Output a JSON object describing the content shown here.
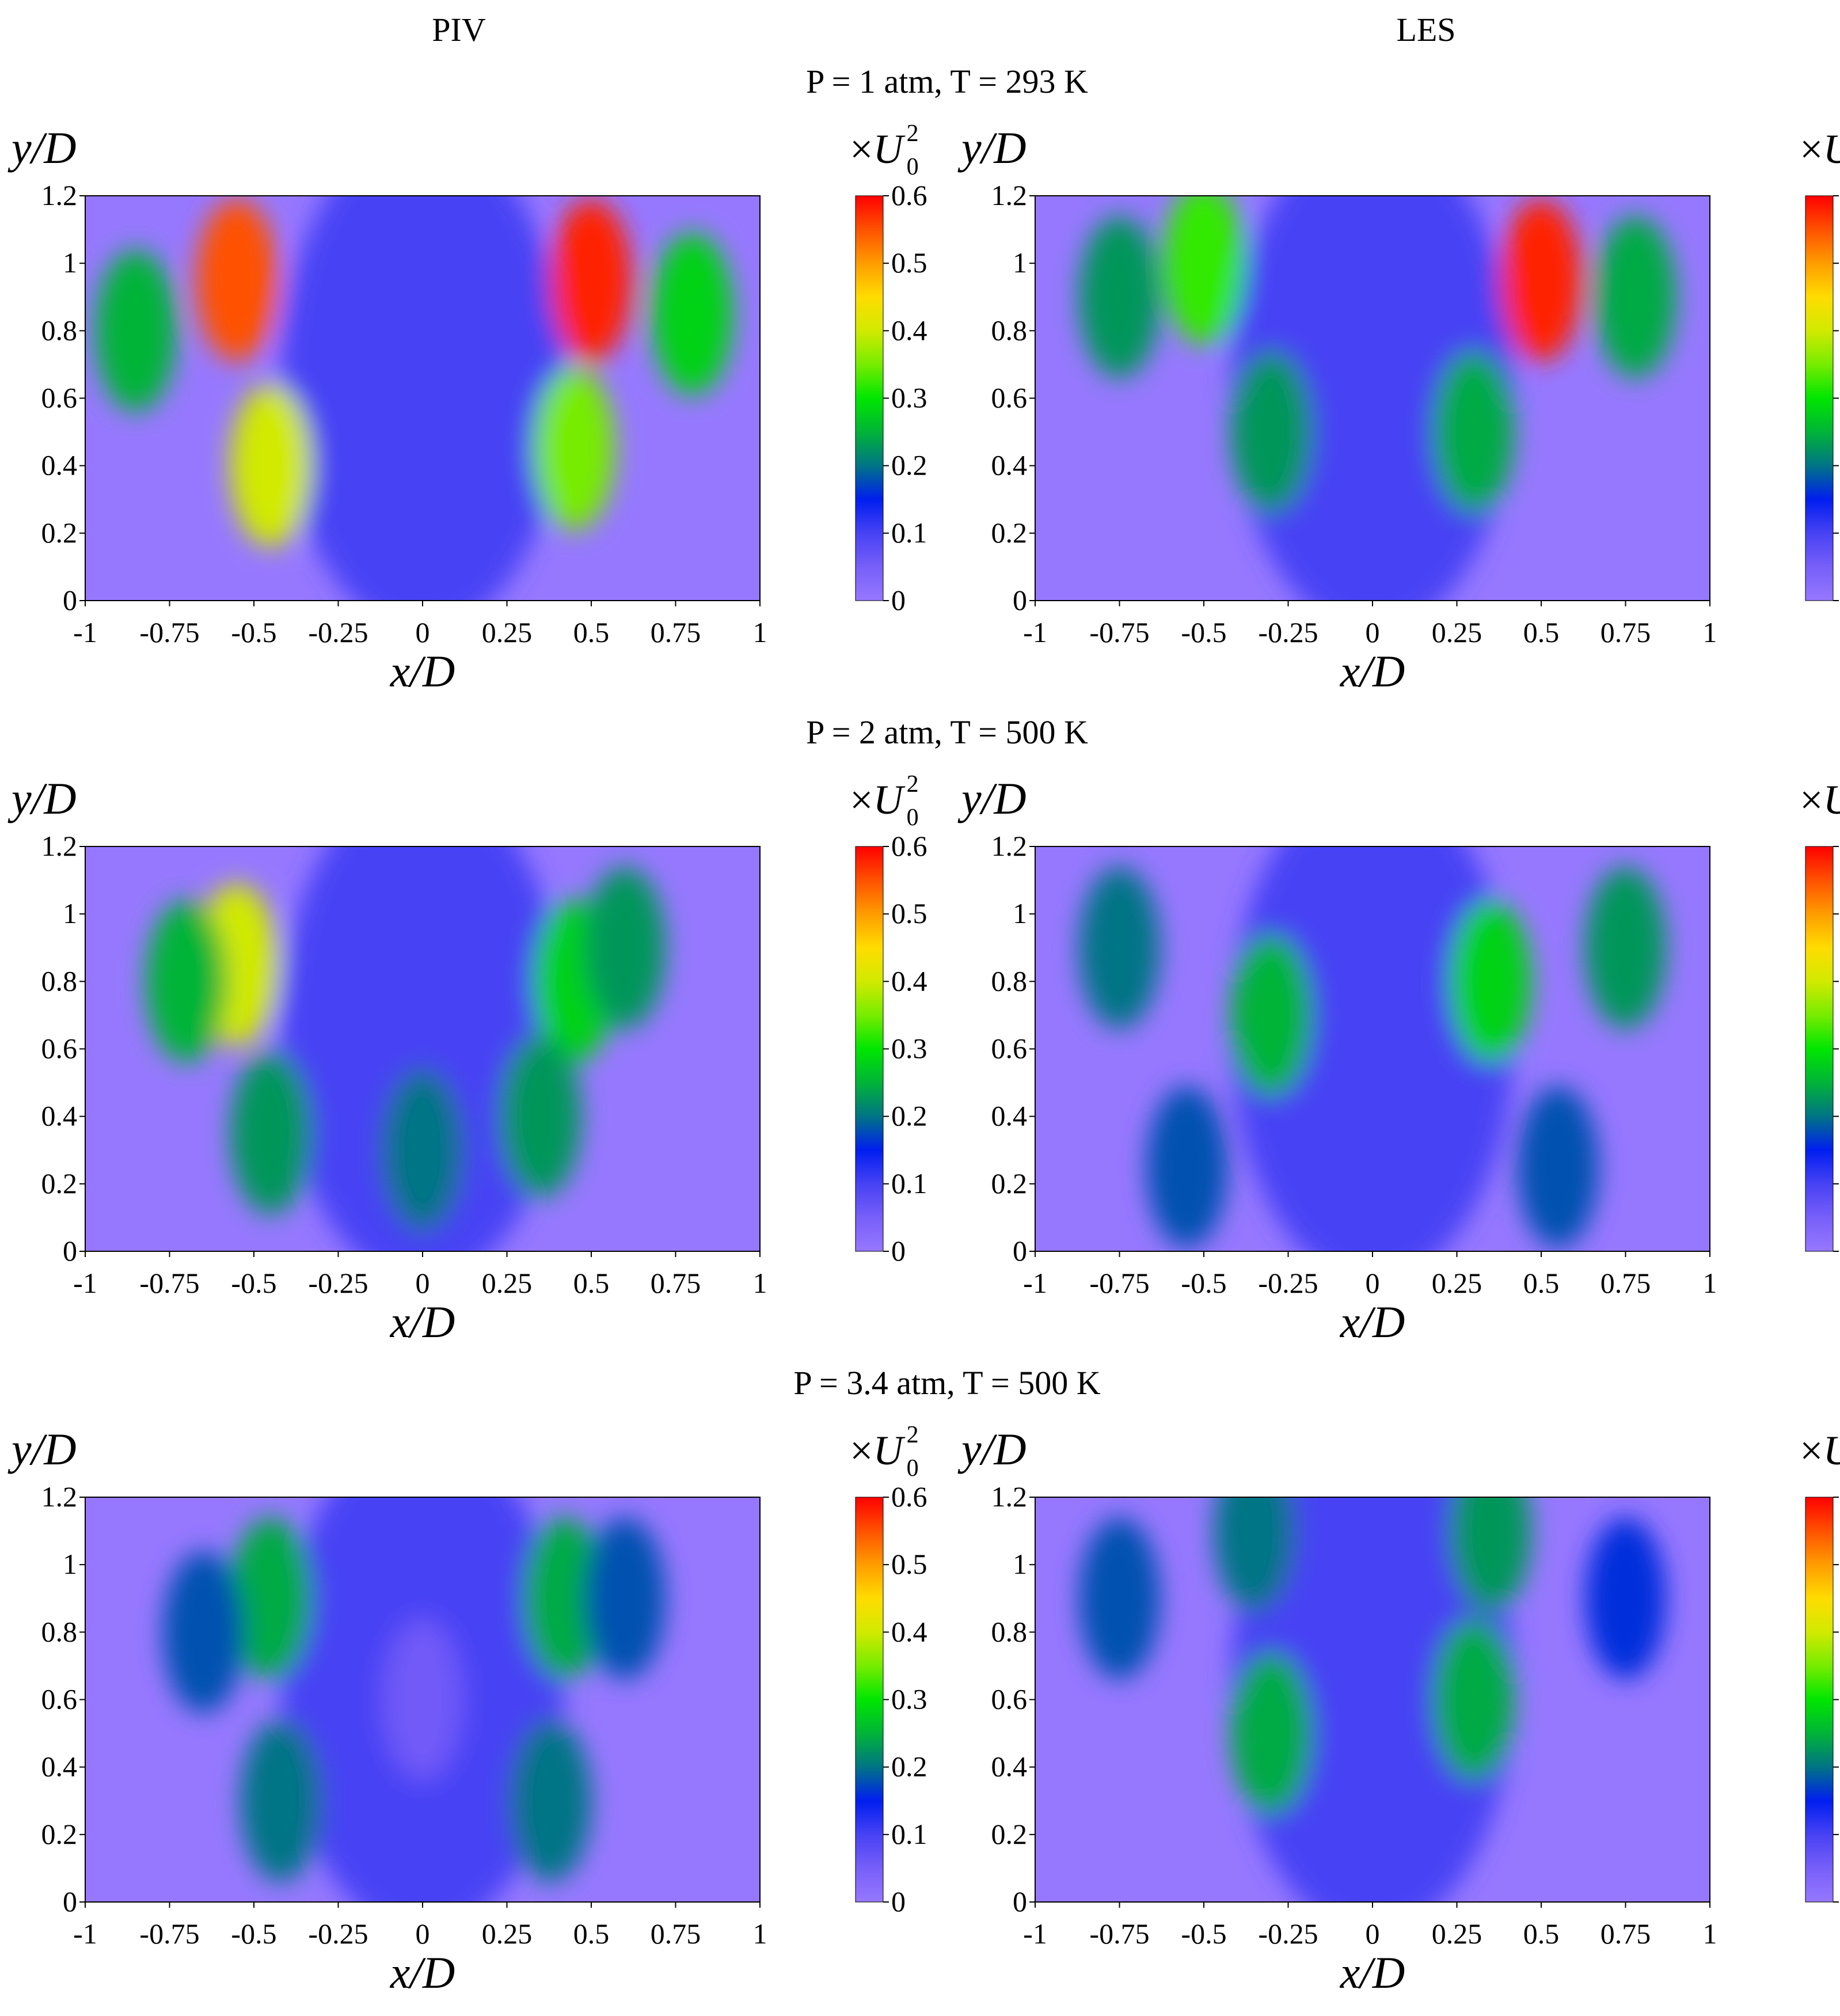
{
  "column_headers": [
    "PIV",
    "LES"
  ],
  "colorbar": {
    "ticks": [
      "0",
      "0.1",
      "0.2",
      "0.3",
      "0.4",
      "0.5",
      "0.6"
    ],
    "unit_prefix": "×",
    "unit_symbol": "U",
    "unit_sup": "2",
    "unit_sub": "0"
  },
  "chart_data": [
    {
      "type": "heatmap",
      "method": "PIV",
      "condition": "P = 1 atm, T = 293 K",
      "xlabel": "x/D",
      "ylabel": "y/D",
      "xlim": [
        -1,
        1
      ],
      "ylim": [
        0,
        1.2
      ],
      "clim": [
        0,
        0.6
      ],
      "xticks": [
        "-1",
        "-0.75",
        "-0.5",
        "-0.25",
        "0",
        "0.25",
        "0.5",
        "0.75",
        "1"
      ],
      "yticks": [
        "0",
        "0.2",
        "0.4",
        "0.6",
        "0.8",
        "1",
        "1.2"
      ],
      "features": [
        {
          "x": -0.55,
          "y": 0.95,
          "value": 0.55
        },
        {
          "x": 0.5,
          "y": 0.95,
          "value": 0.58
        },
        {
          "x": -0.45,
          "y": 0.4,
          "value": 0.4
        },
        {
          "x": 0.45,
          "y": 0.45,
          "value": 0.35
        },
        {
          "x": -0.85,
          "y": 0.8,
          "value": 0.25
        },
        {
          "x": 0.8,
          "y": 0.85,
          "value": 0.28
        },
        {
          "x": 0.0,
          "y": 0.6,
          "value": 0.1
        }
      ]
    },
    {
      "type": "heatmap",
      "method": "LES",
      "condition": "P = 1 atm, T = 293 K",
      "xlabel": "x/D",
      "ylabel": "y/D",
      "xlim": [
        -1,
        1
      ],
      "ylim": [
        0,
        1.2
      ],
      "clim": [
        0,
        0.6
      ],
      "xticks": [
        "-1",
        "-0.75",
        "-0.5",
        "-0.25",
        "0",
        "0.25",
        "0.5",
        "0.75",
        "1"
      ],
      "yticks": [
        "0",
        "0.2",
        "0.4",
        "0.6",
        "0.8",
        "1",
        "1.2"
      ],
      "features": [
        {
          "x": 0.5,
          "y": 0.95,
          "value": 0.58
        },
        {
          "x": -0.5,
          "y": 1.0,
          "value": 0.32
        },
        {
          "x": -0.3,
          "y": 0.5,
          "value": 0.22
        },
        {
          "x": 0.3,
          "y": 0.5,
          "value": 0.24
        },
        {
          "x": -0.75,
          "y": 0.9,
          "value": 0.22
        },
        {
          "x": 0.78,
          "y": 0.9,
          "value": 0.24
        },
        {
          "x": 0.0,
          "y": 0.6,
          "value": 0.1
        }
      ]
    },
    {
      "type": "heatmap",
      "method": "PIV",
      "condition": "P = 2 atm, T = 500 K",
      "xlabel": "x/D",
      "ylabel": "y/D",
      "xlim": [
        -1,
        1
      ],
      "ylim": [
        0,
        1.2
      ],
      "clim": [
        0,
        0.6
      ],
      "xticks": [
        "-1",
        "-0.75",
        "-0.5",
        "-0.25",
        "0",
        "0.25",
        "0.5",
        "0.75",
        "1"
      ],
      "yticks": [
        "0",
        "0.2",
        "0.4",
        "0.6",
        "0.8",
        "1",
        "1.2"
      ],
      "features": [
        {
          "x": -0.55,
          "y": 0.85,
          "value": 0.4
        },
        {
          "x": -0.7,
          "y": 0.8,
          "value": 0.25
        },
        {
          "x": 0.45,
          "y": 0.8,
          "value": 0.28
        },
        {
          "x": 0.6,
          "y": 0.9,
          "value": 0.22
        },
        {
          "x": -0.45,
          "y": 0.35,
          "value": 0.22
        },
        {
          "x": 0.0,
          "y": 0.3,
          "value": 0.2
        },
        {
          "x": 0.35,
          "y": 0.4,
          "value": 0.22
        }
      ]
    },
    {
      "type": "heatmap",
      "method": "LES",
      "condition": "P = 2 atm, T = 500 K",
      "xlabel": "x/D",
      "ylabel": "y/D",
      "xlim": [
        -1,
        1
      ],
      "ylim": [
        0,
        1.2
      ],
      "clim": [
        0,
        0.6
      ],
      "xticks": [
        "-1",
        "-0.75",
        "-0.5",
        "-0.25",
        "0",
        "0.25",
        "0.5",
        "0.75",
        "1"
      ],
      "yticks": [
        "0",
        "0.2",
        "0.4",
        "0.6",
        "0.8",
        "1",
        "1.2"
      ],
      "features": [
        {
          "x": -0.3,
          "y": 0.7,
          "value": 0.25
        },
        {
          "x": 0.35,
          "y": 0.8,
          "value": 0.28
        },
        {
          "x": -0.75,
          "y": 0.9,
          "value": 0.2
        },
        {
          "x": 0.75,
          "y": 0.9,
          "value": 0.22
        },
        {
          "x": -0.55,
          "y": 0.25,
          "value": 0.18
        },
        {
          "x": 0.55,
          "y": 0.25,
          "value": 0.18
        },
        {
          "x": 0.0,
          "y": 0.6,
          "value": 0.1
        }
      ]
    },
    {
      "type": "heatmap",
      "method": "PIV",
      "condition": "P = 3.4 atm, T = 500 K",
      "xlabel": "x/D",
      "ylabel": "y/D",
      "xlim": [
        -1,
        1
      ],
      "ylim": [
        0,
        1.2
      ],
      "clim": [
        0,
        0.6
      ],
      "xticks": [
        "-1",
        "-0.75",
        "-0.5",
        "-0.25",
        "0",
        "0.25",
        "0.5",
        "0.75",
        "1"
      ],
      "yticks": [
        "0",
        "0.2",
        "0.4",
        "0.6",
        "0.8",
        "1",
        "1.2"
      ],
      "features": [
        {
          "x": -0.45,
          "y": 0.9,
          "value": 0.24
        },
        {
          "x": -0.42,
          "y": 0.3,
          "value": 0.2
        },
        {
          "x": 0.42,
          "y": 0.9,
          "value": 0.24
        },
        {
          "x": 0.38,
          "y": 0.3,
          "value": 0.2
        },
        {
          "x": -0.65,
          "y": 0.8,
          "value": 0.18
        },
        {
          "x": 0.6,
          "y": 0.9,
          "value": 0.18
        },
        {
          "x": 0.0,
          "y": 0.6,
          "value": 0.06
        }
      ]
    },
    {
      "type": "heatmap",
      "method": "LES",
      "condition": "P = 3.4 atm, T = 500 K",
      "xlabel": "x/D",
      "ylabel": "y/D",
      "xlim": [
        -1,
        1
      ],
      "ylim": [
        0,
        1.2
      ],
      "clim": [
        0,
        0.6
      ],
      "xticks": [
        "-1",
        "-0.75",
        "-0.5",
        "-0.25",
        "0",
        "0.25",
        "0.5",
        "0.75",
        "1"
      ],
      "yticks": [
        "0",
        "0.2",
        "0.4",
        "0.6",
        "0.8",
        "1",
        "1.2"
      ],
      "features": [
        {
          "x": -0.3,
          "y": 0.5,
          "value": 0.24
        },
        {
          "x": 0.3,
          "y": 0.6,
          "value": 0.24
        },
        {
          "x": -0.35,
          "y": 1.1,
          "value": 0.2
        },
        {
          "x": 0.35,
          "y": 1.1,
          "value": 0.22
        },
        {
          "x": -0.75,
          "y": 0.9,
          "value": 0.18
        },
        {
          "x": 0.75,
          "y": 0.9,
          "value": 0.16
        },
        {
          "x": 0.0,
          "y": 0.6,
          "value": 0.1
        }
      ]
    }
  ]
}
